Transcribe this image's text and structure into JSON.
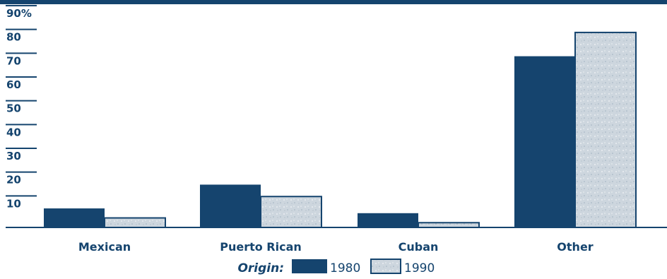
{
  "chart_data": {
    "type": "bar",
    "categories": [
      "Mexican",
      "Puerto Rican",
      "Cuban",
      "Other"
    ],
    "series": [
      {
        "name": "1980",
        "values": [
          8,
          18,
          6,
          72
        ]
      },
      {
        "name": "1990",
        "values": [
          4,
          13,
          2,
          82
        ]
      }
    ],
    "y_ticks": [
      "10",
      "20",
      "30",
      "40",
      "50",
      "60",
      "70",
      "80",
      "90%"
    ],
    "ylim": [
      0,
      90
    ],
    "legend_title": "Origin:",
    "legend_position": "bottom-center",
    "colors": {
      "1980": "#15446e",
      "1990": "#c9d3dc",
      "axis": "#15446e",
      "text": "#15446e"
    }
  }
}
